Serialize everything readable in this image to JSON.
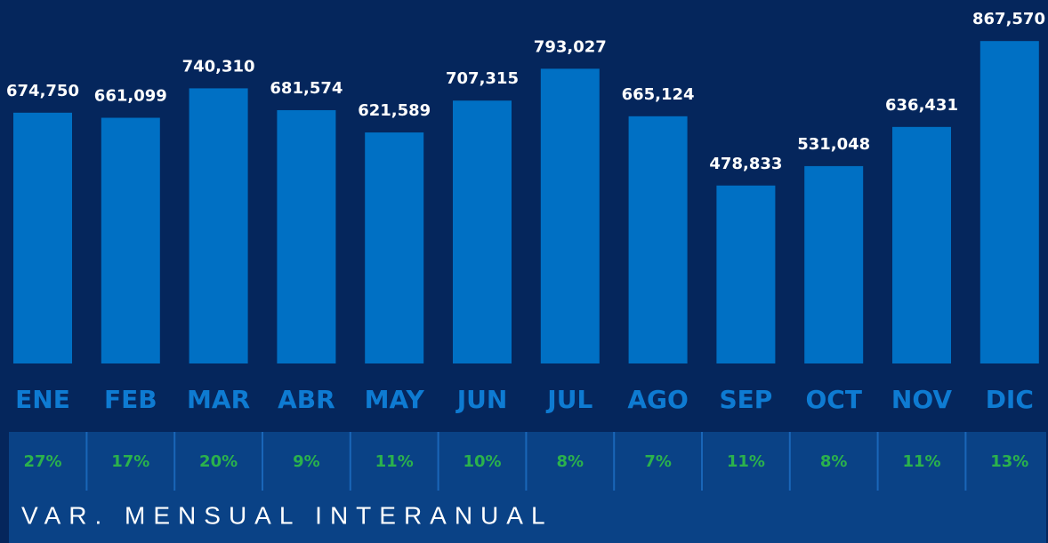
{
  "chart_data": {
    "type": "bar",
    "categories": [
      "ENE",
      "FEB",
      "MAR",
      "ABR",
      "MAY",
      "JUN",
      "JUL",
      "AGO",
      "SEP",
      "OCT",
      "NOV",
      "DIC"
    ],
    "values": [
      674750,
      661099,
      740310,
      681574,
      621589,
      707315,
      793027,
      665124,
      478833,
      531048,
      636431,
      867570
    ],
    "value_labels": [
      "674,750",
      "661,099",
      "740,310",
      "681,574",
      "621,589",
      "707,315",
      "793,027",
      "665,124",
      "478,833",
      "531,048",
      "636,431",
      "867,570"
    ],
    "color": "#0070c4",
    "ylim": [
      0,
      978000
    ],
    "variation": {
      "title": "VAR. MENSUAL INTERANUAL",
      "values": [
        27,
        17,
        20,
        9,
        11,
        10,
        8,
        7,
        11,
        8,
        11,
        13
      ],
      "value_labels": [
        "27%",
        "17%",
        "20%",
        "9%",
        "11%",
        "10%",
        "8%",
        "7%",
        "11%",
        "8%",
        "11%",
        "13%"
      ],
      "color": "#2bb24c"
    }
  }
}
